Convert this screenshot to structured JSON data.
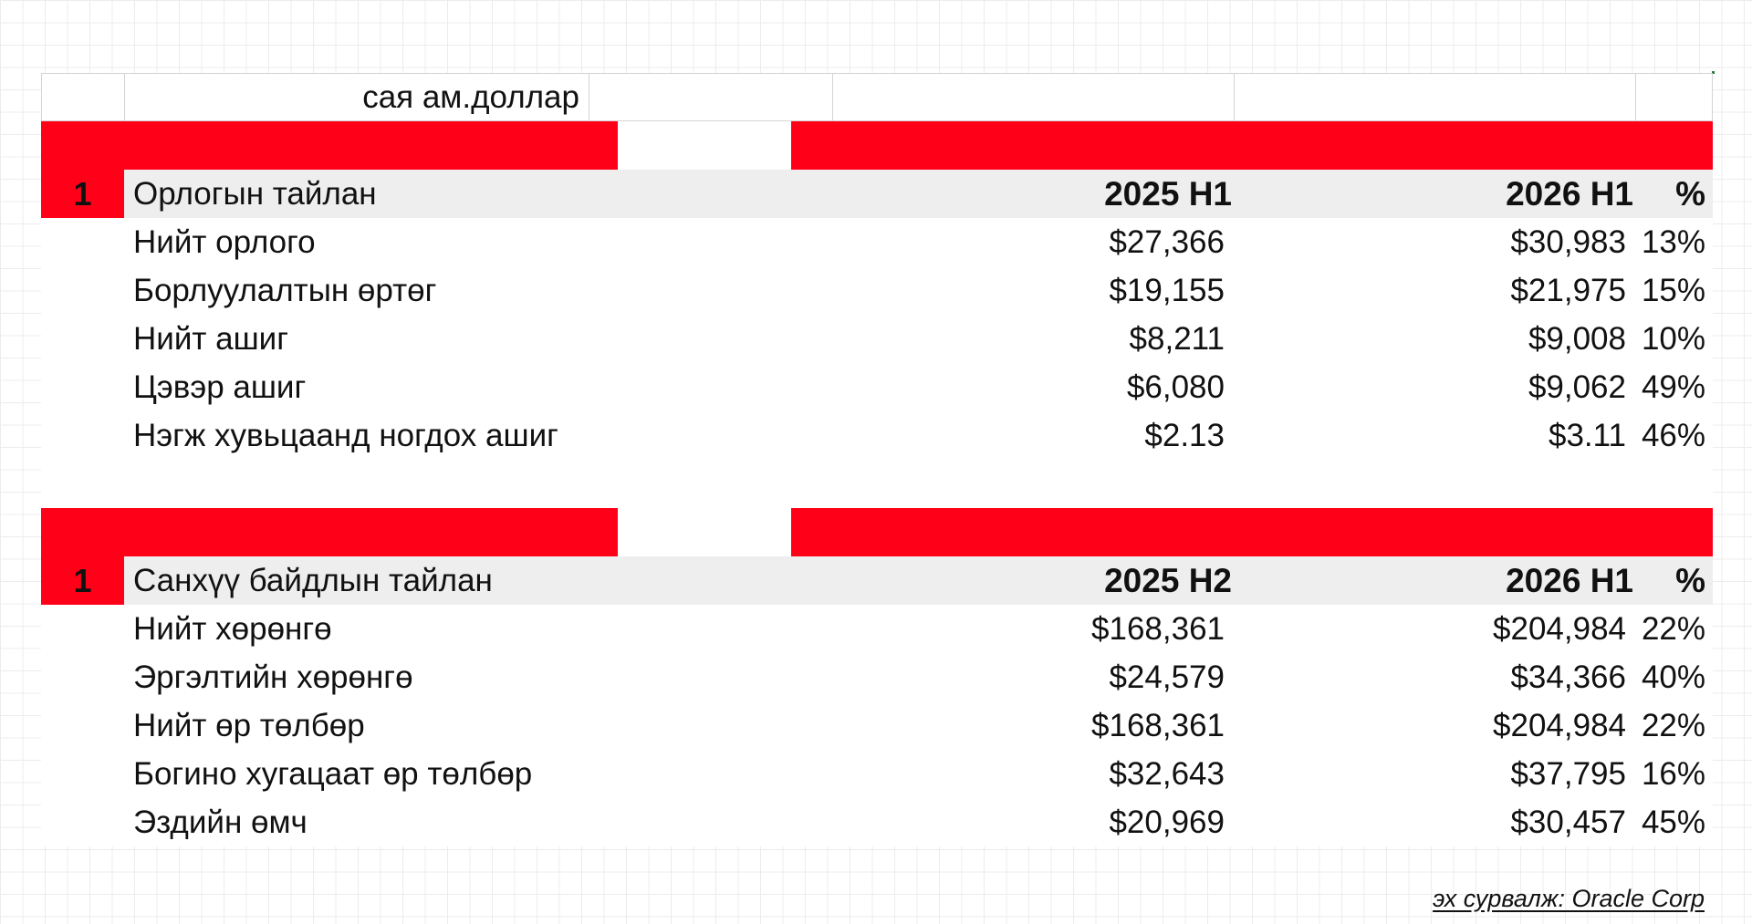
{
  "unit": "сая ам.доллар",
  "sections": [
    {
      "index": "1",
      "title": "Орлогын тайлан",
      "col1": "2025 H1",
      "col2": "2026 H1",
      "col3": "%",
      "rows": [
        {
          "label": "Нийт орлого",
          "v1": "$27,366",
          "v2": "$30,983",
          "pct": "13%"
        },
        {
          "label": "Борлуулалтын өртөг",
          "v1": "$19,155",
          "v2": "$21,975",
          "pct": "15%"
        },
        {
          "label": "Нийт ашиг",
          "v1": "$8,211",
          "v2": "$9,008",
          "pct": "10%"
        },
        {
          "label": "Цэвэр ашиг",
          "v1": "$6,080",
          "v2": "$9,062",
          "pct": "49%"
        },
        {
          "label": "Нэгж хувьцаанд ногдох ашиг",
          "v1": "$2.13",
          "v2": "$3.11",
          "pct": "46%"
        }
      ]
    },
    {
      "index": "1",
      "title": "Санхүү байдлын тайлан",
      "col1": "2025 H2",
      "col2": "2026 H1",
      "col3": "%",
      "rows": [
        {
          "label": "Нийт хөрөнгө",
          "v1": "$168,361",
          "v2": "$204,984",
          "pct": "22%"
        },
        {
          "label": "Эргэлтийн хөрөнгө",
          "v1": "$24,579",
          "v2": "$34,366",
          "pct": "40%"
        },
        {
          "label": "Нийт өр төлбөр",
          "v1": "$168,361",
          "v2": "$204,984",
          "pct": "22%"
        },
        {
          "label": "Богино хугацаат өр төлбөр",
          "v1": "$32,643",
          "v2": "$37,795",
          "pct": "16%"
        },
        {
          "label": "Эздийн өмч",
          "v1": "$20,969",
          "v2": "$30,457",
          "pct": "45%"
        }
      ]
    }
  ],
  "source": "эх сурвалж: Oracle Corp",
  "colors": {
    "accent_red": "#ff0019",
    "header_grey": "#eeeeee",
    "text": "#111111"
  }
}
